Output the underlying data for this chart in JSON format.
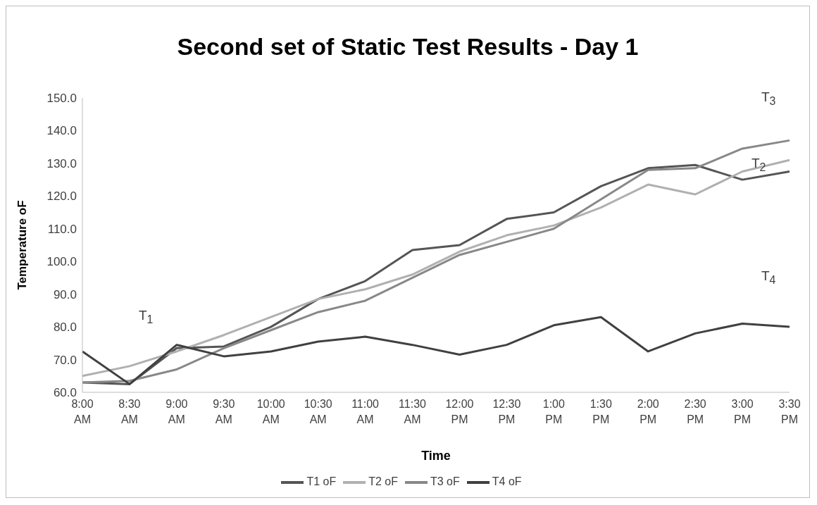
{
  "chart_data": {
    "type": "line",
    "title": "Second set of Static Test Results - Day 1",
    "xlabel": "Time",
    "ylabel": "Temperature oF",
    "categories": [
      "8:00 AM",
      "8:30 AM",
      "9:00 AM",
      "9:30 AM",
      "10:00 AM",
      "10:30 AM",
      "11:00 AM",
      "11:30 AM",
      "12:00 PM",
      "12:30 PM",
      "1:00 PM",
      "1:30 PM",
      "2:00 PM",
      "2:30 PM",
      "3:00 PM",
      "3:30 PM"
    ],
    "series": [
      {
        "name": "T1 oF",
        "color": "#555555",
        "values": [
          63,
          62.5,
          73.5,
          74,
          80,
          88.5,
          94,
          103.5,
          105,
          113,
          115,
          123,
          128.5,
          129.5,
          125,
          127.5
        ]
      },
      {
        "name": "T2 oF",
        "color": "#b0b0b0",
        "values": [
          65,
          68,
          72.5,
          77.5,
          83,
          88.5,
          91.5,
          96,
          103,
          108,
          111,
          116.5,
          123.5,
          120.5,
          127.5,
          131
        ]
      },
      {
        "name": "T3 oF",
        "color": "#888888",
        "values": [
          63,
          63.5,
          67,
          73.5,
          79,
          84.5,
          88,
          95,
          102,
          106,
          110,
          119,
          128,
          128.5,
          134.5,
          137
        ]
      },
      {
        "name": "T4 oF",
        "color": "#404040",
        "values": [
          72.5,
          62.5,
          74.5,
          71,
          72.5,
          75.5,
          77,
          74.5,
          71.5,
          74.5,
          80.5,
          83,
          72.5,
          78,
          81,
          80
        ]
      }
    ],
    "ylim": [
      60,
      150
    ],
    "yticks": [
      {
        "value": 60,
        "label": "60.0"
      },
      {
        "value": 70,
        "label": "70.0"
      },
      {
        "value": 80,
        "label": "80.0"
      },
      {
        "value": 90,
        "label": "90.0"
      },
      {
        "value": 100,
        "label": "100.0"
      },
      {
        "value": 110,
        "label": "110.0"
      },
      {
        "value": 120,
        "label": "120.0"
      },
      {
        "value": 130,
        "label": "130.0"
      },
      {
        "value": 140,
        "label": "140.0"
      },
      {
        "value": 150,
        "label": "150.0"
      }
    ],
    "annotations": [
      "T$_{1}$",
      "T$_{2}$",
      "T$_{3}$",
      "T$_{4}$"
    ],
    "grid": false,
    "legend": "bottom",
    "marker": "none",
    "line_style": "solid"
  }
}
